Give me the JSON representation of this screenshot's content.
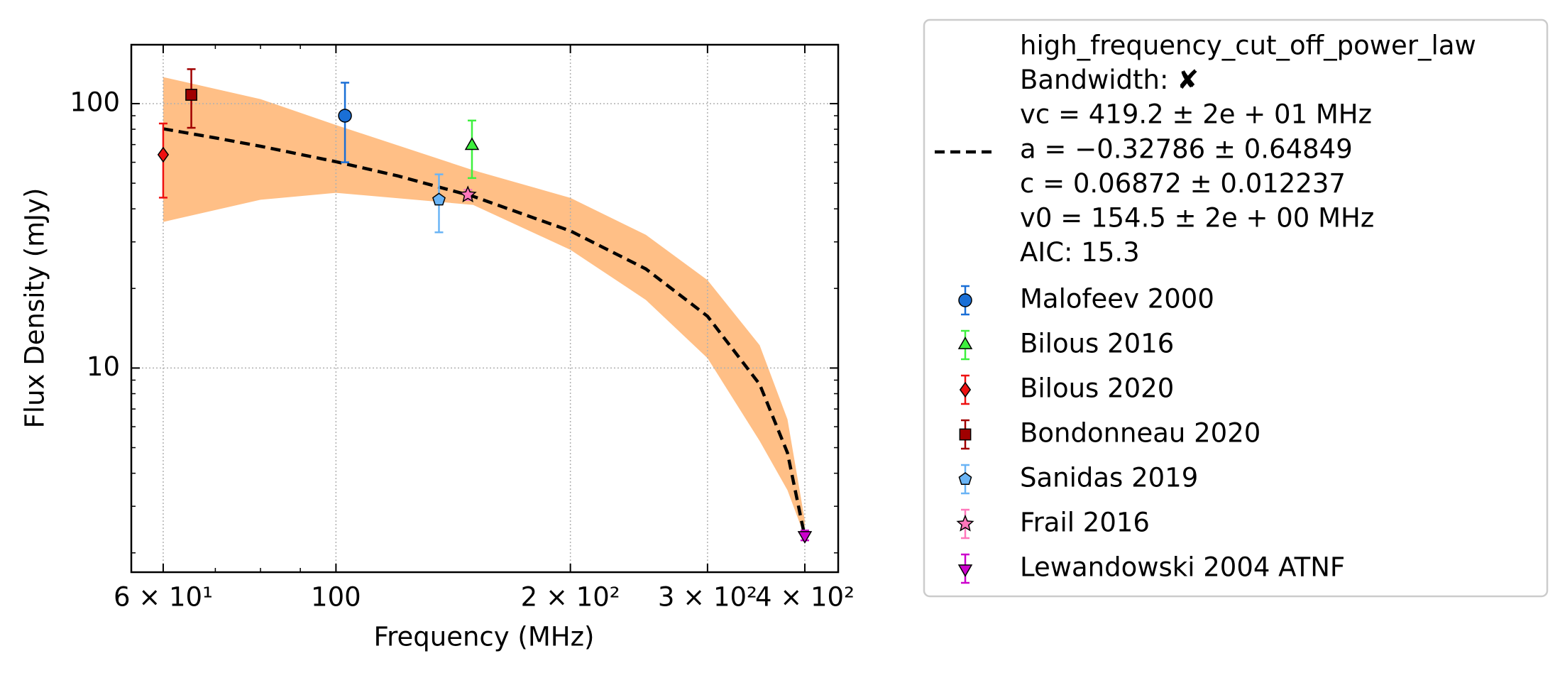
{
  "chart_data": {
    "type": "errorbar",
    "xlabel": "Frequency (MHz)",
    "ylabel": "Flux Density (mJy)",
    "xscale": "log",
    "yscale": "log",
    "xlim": [
      54.6,
      441.5
    ],
    "ylim": [
      1.69,
      167
    ],
    "xticks": [
      {
        "value": 60,
        "label": "6 × 10¹"
      },
      100,
      {
        "value": 200,
        "label": "2 × 10²"
      },
      {
        "value": 300,
        "label": "3 × 10²"
      },
      {
        "value": 400,
        "label": "4 × 10²"
      }
    ],
    "xminorticks": [
      70,
      80,
      90
    ],
    "yticks": [
      10,
      100
    ],
    "yminorticks": [
      2,
      3,
      4,
      5,
      6,
      7,
      8,
      9,
      20,
      30,
      40,
      50,
      60,
      70,
      80,
      90
    ],
    "grid": true,
    "legend": "outside right",
    "fit": {
      "color": "#000000",
      "label": [
        "high_frequency_cut_off_power_law",
        "Bandwidth: ✘",
        "vc = 419.2 ± 2e + 01 MHz",
        "a = −0.32786 ± 0.64849",
        "c = 0.06872 ± 0.012237",
        "v0 = 154.5 ± 2e + 00 MHz",
        "AIC: 15.3"
      ],
      "x": [
        60,
        70,
        80,
        100,
        120,
        150,
        200,
        250,
        300,
        350,
        380,
        400
      ],
      "y": [
        80.3,
        74.2,
        69.0,
        60.3,
        53.3,
        44.6,
        33.0,
        23.7,
        15.7,
        8.68,
        4.78,
        2.3
      ]
    },
    "band": {
      "color": "#ffbf86",
      "x": [
        60,
        80,
        100,
        150,
        200,
        250,
        300,
        350,
        380,
        400
      ],
      "upper": [
        126,
        104,
        83,
        56,
        44,
        31.9,
        21.5,
        12.2,
        6.4,
        2.65
      ],
      "lower": [
        35.7,
        43.3,
        46,
        41.4,
        28,
        18.1,
        10.9,
        5.3,
        3.45,
        2.3
      ]
    },
    "series": [
      {
        "name": "Malofeev 2000",
        "color": "#1a6fd6",
        "marker": "circle",
        "x": [
          102.7
        ],
        "y": [
          90
        ],
        "yerr": [
          30
        ]
      },
      {
        "name": "Bilous 2016",
        "color": "#3ef03e",
        "marker": "triangle-up",
        "x": [
          149.5
        ],
        "y": [
          69.3
        ],
        "yerr": [
          17
        ]
      },
      {
        "name": "Bilous 2020",
        "color": "#ee1111",
        "marker": "diamond",
        "x": [
          60
        ],
        "y": [
          64.1
        ],
        "yerr": [
          20
        ]
      },
      {
        "name": "Bondonneau 2020",
        "color": "#a00000",
        "marker": "square",
        "x": [
          65.2
        ],
        "y": [
          108
        ],
        "yerr": [
          27
        ]
      },
      {
        "name": "Sanidas 2019",
        "color": "#6ab4f5",
        "marker": "pentagon",
        "x": [
          135.6
        ],
        "y": [
          43.3
        ],
        "yerr": [
          10.7
        ]
      },
      {
        "name": "Frail 2016",
        "color": "#ff77bb",
        "marker": "star",
        "x": [
          147.7
        ],
        "y": [
          45.2
        ],
        "yerr": [
          2
        ]
      },
      {
        "name": "Lewandowski 2004 ATNF",
        "color": "#cc00cc",
        "marker": "triangle-down",
        "x": [
          400
        ],
        "y": [
          2.33
        ],
        "yerr": [
          0.1
        ]
      }
    ]
  }
}
